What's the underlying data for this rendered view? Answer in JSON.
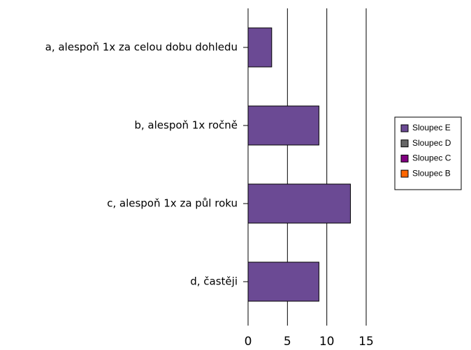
{
  "chart_data": {
    "type": "bar",
    "orientation": "horizontal",
    "categories": [
      "a, alespoň 1x za celou dobu dohledu",
      "b, alespoň 1x ročně",
      "c, alespoň 1x za půl roku",
      "d, častěji"
    ],
    "series": [
      {
        "name": "Sloupec E",
        "color": "#6b4a94",
        "values": [
          3,
          9,
          13,
          9
        ]
      },
      {
        "name": "Sloupec D",
        "color": "#666666",
        "values": [
          null,
          null,
          null,
          null
        ]
      },
      {
        "name": "Sloupec C",
        "color": "#800080",
        "values": [
          null,
          null,
          null,
          null
        ]
      },
      {
        "name": "Sloupec B",
        "color": "#ff6600",
        "values": [
          null,
          null,
          null,
          null
        ]
      }
    ],
    "xlim": [
      0,
      15
    ],
    "xticks": [
      0,
      5,
      10,
      15
    ],
    "grid": true,
    "legend": "right"
  }
}
